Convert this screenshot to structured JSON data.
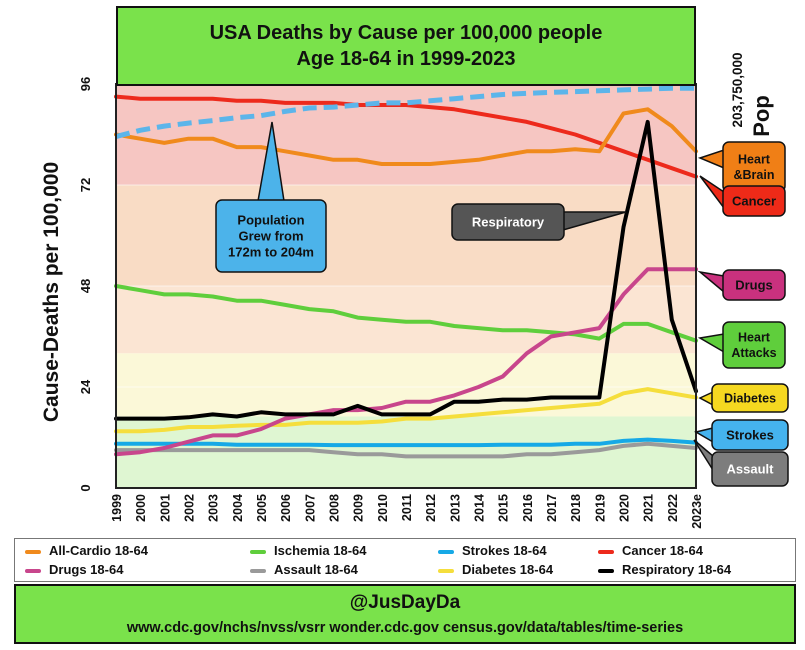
{
  "header": {
    "title_line1": "USA Deaths by Cause per 100,000 people",
    "title_line2": "Age 18-64 in 1999-2023"
  },
  "chart_data": {
    "type": "line",
    "title": "USA Deaths by Cause per 100,000 people Age 18-64 in 1999-2023",
    "ylabel": "Cause-Deaths per 100,000",
    "xlabel": "",
    "ylim": [
      0,
      96
    ],
    "yticks": [
      "0",
      "24",
      "48",
      "72",
      "96"
    ],
    "categories": [
      "1999",
      "2000",
      "2001",
      "2002",
      "2003",
      "2004",
      "2005",
      "2006",
      "2007",
      "2008",
      "2009",
      "2010",
      "2011",
      "2012",
      "2013",
      "2014",
      "2015",
      "2016",
      "2017",
      "2018",
      "2019",
      "2020",
      "2021",
      "2022",
      "2023e"
    ],
    "series": [
      {
        "name": "All-Cardio 18-64",
        "color": "#f08a1c",
        "values": [
          84,
          83,
          82,
          83,
          83,
          81,
          81,
          80,
          79,
          78,
          78,
          77,
          77,
          77,
          77.5,
          78,
          79,
          80,
          80,
          80.5,
          80,
          89,
          90,
          86,
          80
        ]
      },
      {
        "name": "Ischemia 18-64",
        "color": "#5fce3c",
        "values": [
          48,
          47,
          46,
          46,
          45.5,
          44.5,
          44.5,
          43.5,
          42.5,
          42,
          40.5,
          40,
          39.5,
          39.5,
          38.5,
          38,
          37.5,
          37.5,
          37,
          36.5,
          35.5,
          39,
          39,
          37,
          35
        ]
      },
      {
        "name": "Strokes 18-64",
        "color": "#16a9e6",
        "values": [
          10.5,
          10.5,
          10.5,
          10.5,
          10.5,
          10.3,
          10.3,
          10.3,
          10.3,
          10.2,
          10.2,
          10.2,
          10.2,
          10.2,
          10.2,
          10.2,
          10.3,
          10.3,
          10.3,
          10.5,
          10.5,
          11.2,
          11.5,
          11.2,
          10.8
        ]
      },
      {
        "name": "Cancer 18-64",
        "color": "#ed2a1c",
        "values": [
          93,
          92.5,
          92.5,
          92.5,
          92.5,
          92,
          92,
          91.5,
          91.5,
          91.5,
          91,
          91,
          91,
          90.5,
          90,
          89,
          88,
          87,
          85.5,
          84,
          82,
          80,
          78,
          76,
          74
        ]
      },
      {
        "name": "Drugs 18-64",
        "color": "#c8468c",
        "values": [
          8,
          8.5,
          9.5,
          11,
          12.5,
          12.5,
          14,
          16.5,
          17.5,
          18.5,
          18.5,
          19,
          20.5,
          20.5,
          22,
          24,
          26.5,
          32,
          36,
          37,
          38,
          46,
          52,
          52,
          52
        ]
      },
      {
        "name": "Assault 18-64",
        "color": "#9a9a9a",
        "values": [
          9,
          9,
          9,
          9,
          9,
          9,
          9,
          9,
          9,
          8.5,
          8,
          8,
          7.5,
          7.5,
          7.5,
          7.5,
          7.5,
          8,
          8,
          8.5,
          9,
          10,
          10.5,
          10,
          9.5
        ]
      },
      {
        "name": "Diabetes 18-64",
        "color": "#f5de3c",
        "values": [
          13.5,
          13.5,
          13.8,
          14.5,
          14.5,
          14.8,
          15,
          15,
          15.5,
          15.5,
          15.5,
          15.8,
          16.5,
          16.5,
          17,
          17.5,
          18,
          18.5,
          19,
          19.5,
          20,
          22.5,
          23.5,
          22.5,
          21.5
        ]
      },
      {
        "name": "Respiratory 18-64",
        "color": "#000000",
        "values": [
          16.5,
          16.5,
          16.5,
          16.8,
          17.5,
          17,
          18,
          17.5,
          17.5,
          17.5,
          19.5,
          17.5,
          17.5,
          17.5,
          20.5,
          20.5,
          21,
          21,
          21.5,
          21.5,
          21.5,
          62,
          87,
          40,
          23
        ]
      },
      {
        "name": "Population",
        "color": "#5cb5ea",
        "dashed": true,
        "values": [
          83.5,
          85,
          86,
          86.7,
          87.3,
          88,
          88.5,
          89.5,
          90.3,
          90.5,
          91,
          91.5,
          91.5,
          92,
          92.5,
          93,
          93.5,
          93.8,
          94,
          94.2,
          94.4,
          94.6,
          94.8,
          95,
          95
        ]
      }
    ],
    "bands": [
      {
        "from": 72,
        "to": 96,
        "color": "#f6c6c2"
      },
      {
        "from": 48,
        "to": 72,
        "color": "#f9dcc5"
      },
      {
        "from": 32,
        "to": 48,
        "color": "#fbe5d3"
      },
      {
        "from": 17,
        "to": 32,
        "color": "#fbf8d8"
      },
      {
        "from": 0,
        "to": 17,
        "color": "#dff6d2"
      }
    ],
    "right_axis": {
      "label": "Pop",
      "value": "203,750,000"
    },
    "callouts": [
      {
        "text": "Population\nGrew from\n172m to 204m",
        "color": "#4cb3ea"
      },
      {
        "text": "Respiratory",
        "color": "#555555"
      },
      {
        "text": "Heart\n&Brain",
        "color": "#f07f16"
      },
      {
        "text": "Cancer",
        "color": "#ee2a18"
      },
      {
        "text": "Drugs",
        "color": "#c9317e"
      },
      {
        "text": "Heart\nAttacks",
        "color": "#5fce3c"
      },
      {
        "text": "Diabetes",
        "color": "#f5d820"
      },
      {
        "text": "Strokes",
        "color": "#45b3ee"
      },
      {
        "text": "Assault",
        "color": "#7d7d7d"
      }
    ]
  },
  "legend": [
    {
      "label": "All-Cardio 18-64",
      "color": "#f08a1c"
    },
    {
      "label": "Ischemia 18-64",
      "color": "#5fce3c"
    },
    {
      "label": "Strokes 18-64",
      "color": "#16a9e6"
    },
    {
      "label": "Cancer 18-64",
      "color": "#ed2a1c"
    },
    {
      "label": "Drugs 18-64",
      "color": "#c8468c"
    },
    {
      "label": "Assault 18-64",
      "color": "#9a9a9a"
    },
    {
      "label": "Diabetes 18-64",
      "color": "#f5de3c"
    },
    {
      "label": "Respiratory 18-64",
      "color": "#000000"
    }
  ],
  "footer": {
    "handle": "@JusDayDa",
    "sources": "www.cdc.gov/nchs/nvss/vsrr  wonder.cdc.gov  census.gov/data/tables/time-series"
  }
}
